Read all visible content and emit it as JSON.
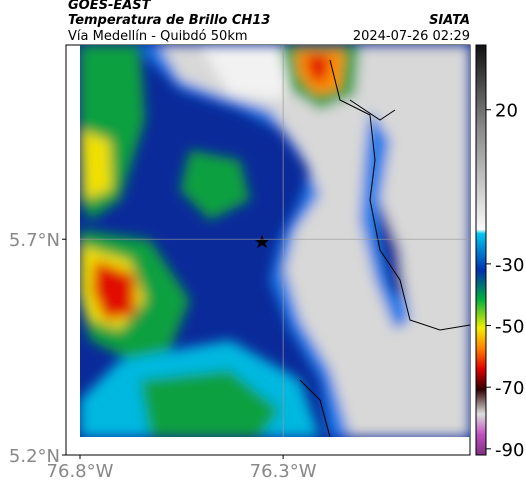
{
  "header": {
    "title": "GOES-EAST",
    "subtitle": "Temperatura de Brillo CH13",
    "region": "Vía Medellín - Quibdó 50km",
    "source": "SIATA",
    "timestamp": "2024-07-26 02:29"
  },
  "map": {
    "latlim": [
      5.2,
      6.15
    ],
    "lonlim": [
      -76.8,
      -75.84
    ],
    "lat_ticks": [
      {
        "value": 5.7,
        "label": "5.7°N"
      },
      {
        "value": 5.2,
        "label": "5.2°N"
      }
    ],
    "lon_ticks": [
      {
        "value": -76.8,
        "label": "76.8°W"
      },
      {
        "value": -76.3,
        "label": "76.3°W"
      }
    ]
  },
  "colorbar": {
    "lim": [
      -92,
      41
    ],
    "ticks": [
      20,
      -30,
      -50,
      -70,
      -90
    ]
  }
}
